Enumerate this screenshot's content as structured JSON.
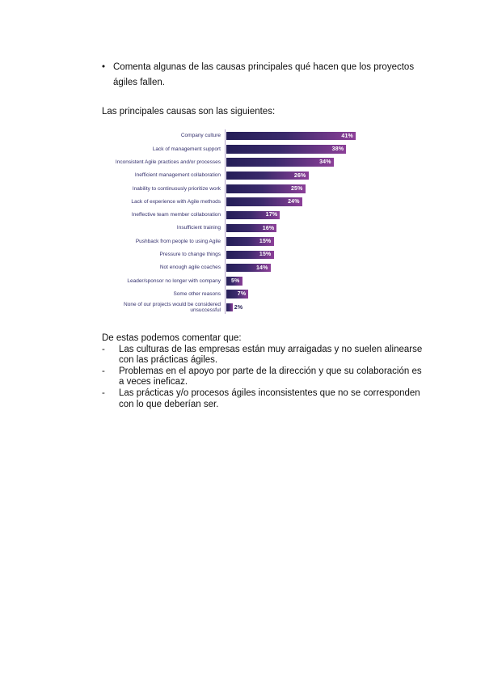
{
  "document": {
    "bullet_marker": "•",
    "question": "Comenta algunas de las causas principales qué hacen que los proyectos ágiles fallen.",
    "intro": "Las principales causas son las siguientes:",
    "comments_heading": "De estas podemos comentar que:",
    "comment_marker": "-",
    "comments": [
      "Las culturas de las empresas están muy arraigadas y no suelen alinearse con las prácticas ágiles.",
      "Problemas en el apoyo por parte de la dirección y que su colaboración es a veces ineficaz.",
      "Las prácticas y/o procesos ágiles inconsistentes que no se corresponden con lo que deberían ser."
    ]
  },
  "chart_data": {
    "type": "bar",
    "orientation": "horizontal",
    "title": "",
    "xlabel": "",
    "ylabel": "",
    "grid": false,
    "legend": false,
    "xlim": [
      0,
      41
    ],
    "categories": [
      "Company culture",
      "Lack of management support",
      "Inconsistent Agile practices and/or processes",
      "Inefficient management collaboration",
      "Inability to continuously prioritize work",
      "Lack of experience with Agile methods",
      "Ineffective team member collaboration",
      "Insufficient training",
      "Pushback from people to using Agile",
      "Pressure to change things",
      "Not enough agile coaches",
      "Leader/sponsor no longer with company",
      "Some other reasons",
      "None of our projects would be considered unsuccessful"
    ],
    "values": [
      41,
      38,
      34,
      26,
      25,
      24,
      17,
      16,
      15,
      15,
      14,
      5,
      7,
      2
    ],
    "value_labels": [
      "41%",
      "38%",
      "34%",
      "26%",
      "25%",
      "24%",
      "17%",
      "16%",
      "15%",
      "15%",
      "14%",
      "5%",
      "7%",
      "2%"
    ],
    "colors": {
      "bar_gradient_start": "#241e57",
      "bar_gradient_end": "#8c3f98",
      "axis_line": "#b2a1c9",
      "category_label": "#34306d",
      "value_label_inside": "#ffffff",
      "value_label_outside": "#2a2458"
    }
  }
}
